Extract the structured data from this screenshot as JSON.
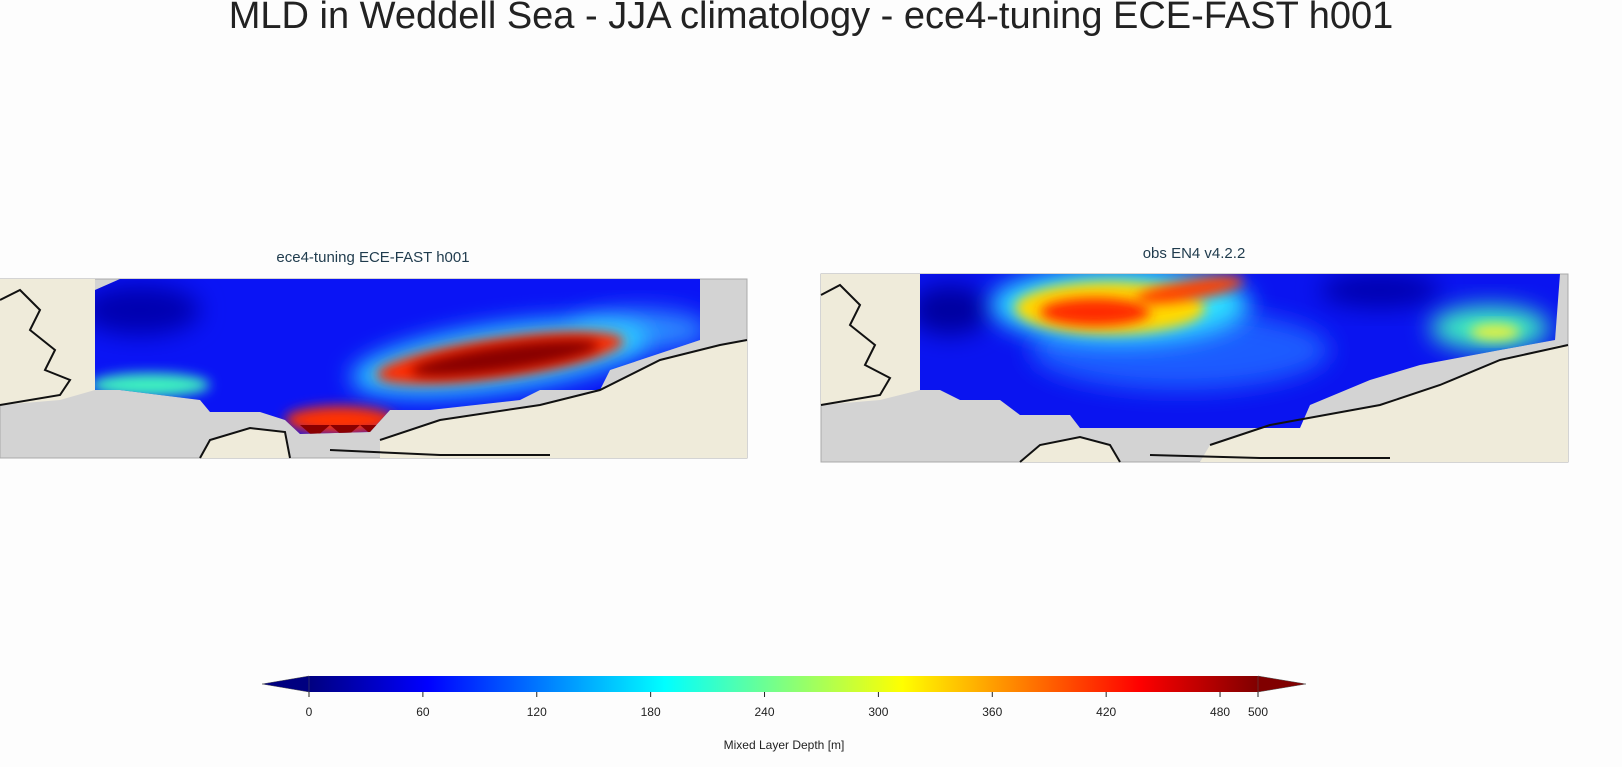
{
  "title": "MLD in Weddell Sea - JJA climatology - ece4-tuning ECE-FAST h001",
  "panels": [
    {
      "title": "ece4-tuning ECE-FAST h001"
    },
    {
      "title": "obs EN4 v4.2.2"
    }
  ],
  "colorbar": {
    "label": "Mixed Layer Depth [m]",
    "lim": [
      0,
      500
    ],
    "ticks": [
      0,
      60,
      120,
      180,
      240,
      300,
      360,
      420,
      480,
      500
    ],
    "colormap": "jet",
    "extend": "both"
  }
}
